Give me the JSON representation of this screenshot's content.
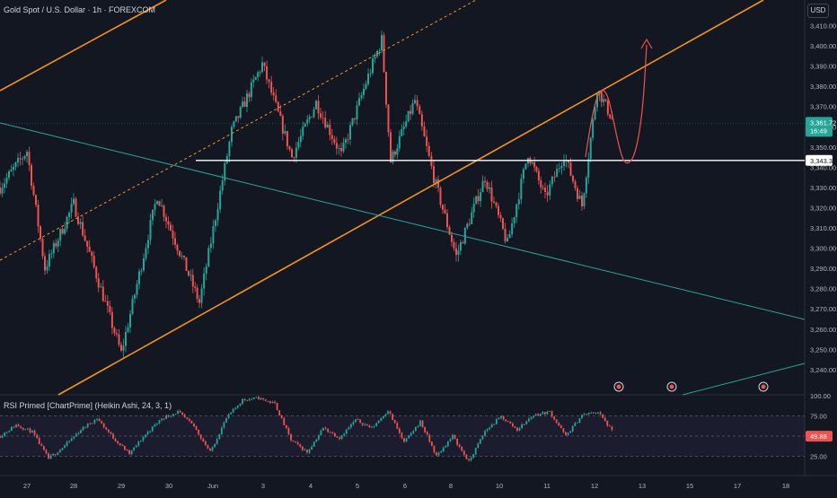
{
  "header": {
    "symbol_title": "Gold Spot / U.S. Dollar · 1h · FOREXCOM",
    "currency": "USD"
  },
  "indicator": {
    "title": "RSI Primed [ChartPrime] (Heikin Ashi, 24, 3, 1)"
  },
  "colors": {
    "background": "#131722",
    "up_candle": "#26a69a",
    "down_candle": "#ef5350",
    "channel": "#f7931a",
    "teal_line": "#26a69a",
    "support_line": "#ffffff",
    "price_label_bg": "#26a69a",
    "support_label_bg": "#ffffff",
    "rsi_label_bg": "#ef5350",
    "projection": "#ef5350"
  },
  "labels": {
    "current_price": "3,361.72",
    "countdown": "16:49",
    "support_price": "3,343.35",
    "rsi_value": "49.88"
  },
  "chart_data": [
    {
      "type": "candlestick",
      "title": "Gold Spot / U.S. Dollar · 1h · FOREXCOM",
      "y_ticks": [
        "3,410.00",
        "3,400.00",
        "3,390.00",
        "3,380.00",
        "3,370.00",
        "3,360.00",
        "3,350.00",
        "3,340.00",
        "3,330.00",
        "3,320.00",
        "3,310.00",
        "3,300.00",
        "3,290.00",
        "3,280.00",
        "3,270.00",
        "3,260.00",
        "3,250.00",
        "3,240.00"
      ],
      "ylim": [
        3233,
        3417
      ],
      "x_ticks": [
        "27",
        "28",
        "29",
        "30",
        "Jun",
        "3",
        "4",
        "5",
        "6",
        "8",
        "10",
        "11",
        "12",
        "13",
        "15",
        "17",
        "18"
      ],
      "support_level": 3343.35,
      "current_price": 3361.72,
      "swing_points": [
        {
          "x": "26",
          "y": 3330
        },
        {
          "x": "27",
          "y": 3348
        },
        {
          "x": "27-28",
          "y": 3290
        },
        {
          "x": "28",
          "y": 3322
        },
        {
          "x": "29",
          "y": 3248
        },
        {
          "x": "29-30",
          "y": 3326
        },
        {
          "x": "30",
          "y": 3287
        },
        {
          "x": "30-Jun",
          "y": 3273
        },
        {
          "x": "Jun-3",
          "y": 3358
        },
        {
          "x": "3",
          "y": 3391
        },
        {
          "x": "3-4",
          "y": 3345
        },
        {
          "x": "4",
          "y": 3372
        },
        {
          "x": "4-5",
          "y": 3346
        },
        {
          "x": "5",
          "y": 3385
        },
        {
          "x": "5",
          "y": 3403
        },
        {
          "x": "5-6",
          "y": 3343
        },
        {
          "x": "6",
          "y": 3373
        },
        {
          "x": "6-8",
          "y": 3335
        },
        {
          "x": "8",
          "y": 3296
        },
        {
          "x": "8-10",
          "y": 3335
        },
        {
          "x": "10",
          "y": 3302
        },
        {
          "x": "10-11",
          "y": 3347
        },
        {
          "x": "11",
          "y": 3325
        },
        {
          "x": "11-12",
          "y": 3346
        },
        {
          "x": "11-12",
          "y": 3321
        },
        {
          "x": "12",
          "y": 3379
        },
        {
          "x": "12",
          "y": 3361.72
        }
      ]
    },
    {
      "type": "line",
      "title": "RSI Primed [ChartPrime] (Heikin Ashi, 24, 3, 1)",
      "y_ticks": [
        "100.00",
        "75.00",
        "50.00",
        "25.00"
      ],
      "ylim": [
        0,
        100
      ],
      "current_value": 49.88,
      "points": [
        50,
        64,
        55,
        22,
        38,
        58,
        72,
        48,
        28,
        52,
        72,
        80,
        62,
        30,
        72,
        95,
        97,
        90,
        45,
        30,
        60,
        48,
        70,
        60,
        82,
        42,
        68,
        25,
        50,
        18,
        56,
        74,
        58,
        76,
        80,
        50,
        76,
        80,
        52
      ]
    }
  ]
}
